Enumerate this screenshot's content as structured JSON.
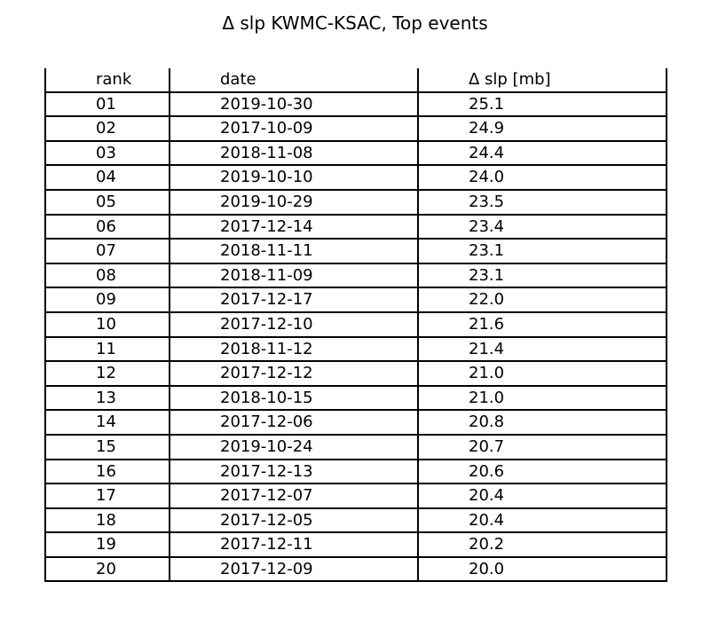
{
  "chart_data": {
    "type": "table",
    "title": "Δ slp KWMC-KSAC, Top events",
    "columns": [
      "rank",
      "date",
      "Δ slp [mb]"
    ],
    "rows": [
      [
        "01",
        "2019-10-30",
        "25.1"
      ],
      [
        "02",
        "2017-10-09",
        "24.9"
      ],
      [
        "03",
        "2018-11-08",
        "24.4"
      ],
      [
        "04",
        "2019-10-10",
        "24.0"
      ],
      [
        "05",
        "2019-10-29",
        "23.5"
      ],
      [
        "06",
        "2017-12-14",
        "23.4"
      ],
      [
        "07",
        "2018-11-11",
        "23.1"
      ],
      [
        "08",
        "2018-11-09",
        "23.1"
      ],
      [
        "09",
        "2017-12-17",
        "22.0"
      ],
      [
        "10",
        "2017-12-10",
        "21.6"
      ],
      [
        "11",
        "2018-11-12",
        "21.4"
      ],
      [
        "12",
        "2017-12-12",
        "21.0"
      ],
      [
        "13",
        "2018-10-15",
        "21.0"
      ],
      [
        "14",
        "2017-12-06",
        "20.8"
      ],
      [
        "15",
        "2019-10-24",
        "20.7"
      ],
      [
        "16",
        "2017-12-13",
        "20.6"
      ],
      [
        "17",
        "2017-12-07",
        "20.4"
      ],
      [
        "18",
        "2017-12-05",
        "20.4"
      ],
      [
        "19",
        "2017-12-11",
        "20.2"
      ],
      [
        "20",
        "2017-12-09",
        "20.0"
      ]
    ]
  }
}
